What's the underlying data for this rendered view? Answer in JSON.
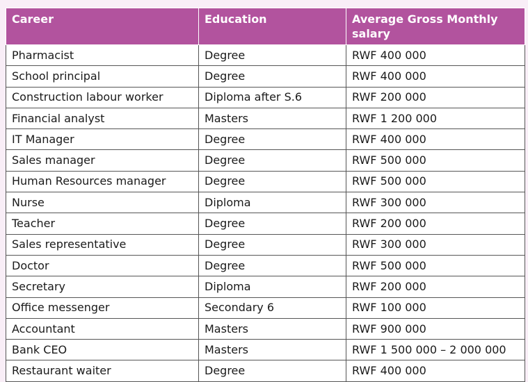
{
  "table": {
    "headers": [
      "Career",
      "Education",
      "Average Gross Monthly salary"
    ],
    "rows": [
      [
        "Pharmacist",
        "Degree",
        "RWF  400 000"
      ],
      [
        "School principal",
        "Degree",
        "RWF  400 000"
      ],
      [
        "Construction labour worker",
        "Diploma after S.6",
        "RWF  200 000"
      ],
      [
        "Financial analyst",
        "Masters",
        "RWF  1 200 000"
      ],
      [
        "IT Manager",
        "Degree",
        "RWF  400 000"
      ],
      [
        "Sales manager",
        "Degree",
        "RWF  500 000"
      ],
      [
        "Human Resources manager",
        "Degree",
        "RWF  500 000"
      ],
      [
        "Nurse",
        "Diploma",
        "RWF  300 000"
      ],
      [
        "Teacher",
        "Degree",
        "RWF  200 000"
      ],
      [
        "Sales representative",
        "Degree",
        "RWF  300 000"
      ],
      [
        "Doctor",
        "Degree",
        "RWF  500 000"
      ],
      [
        "Secretary",
        "Diploma",
        "RWF  200 000"
      ],
      [
        "Office messenger",
        "Secondary 6",
        "RWF  100 000"
      ],
      [
        "Accountant",
        "Masters",
        "RWF  900 000"
      ],
      [
        "Bank CEO",
        "Masters",
        "RWF  1 500 000 – 2 000 000"
      ],
      [
        "Restaurant waiter",
        "Degree",
        "RWF  400 000"
      ]
    ]
  },
  "colors": {
    "header_background": "#b2539e",
    "page_background": "#f9eef7"
  }
}
